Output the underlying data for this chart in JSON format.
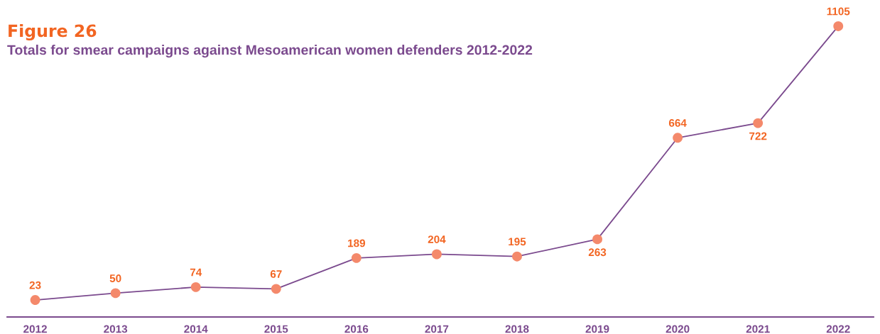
{
  "chart_data": {
    "type": "line",
    "title": "Figure 26",
    "subtitle": "Totals for smear campaigns against Mesoamerican women defenders 2012-2022",
    "categories": [
      "2012",
      "2013",
      "2014",
      "2015",
      "2016",
      "2017",
      "2018",
      "2019",
      "2020",
      "2021",
      "2022"
    ],
    "series": [
      {
        "color": "#7b4a8e",
        "colors": [
          "#f4896b",
          "#f4896b",
          "#f4896b",
          "#f4896b",
          "#f4896b",
          "#f4896b",
          "#f4896b",
          "#f4896b",
          "#f4896b",
          "#f4896b",
          "#f4896b"
        ],
        "values": [
          23,
          50,
          74,
          67,
          189,
          204,
          195,
          263,
          664,
          722,
          1105
        ]
      }
    ],
    "tick_labels": "x",
    "data_labels": true,
    "marker": "circle",
    "line_style": "solid",
    "grid": false
  }
}
